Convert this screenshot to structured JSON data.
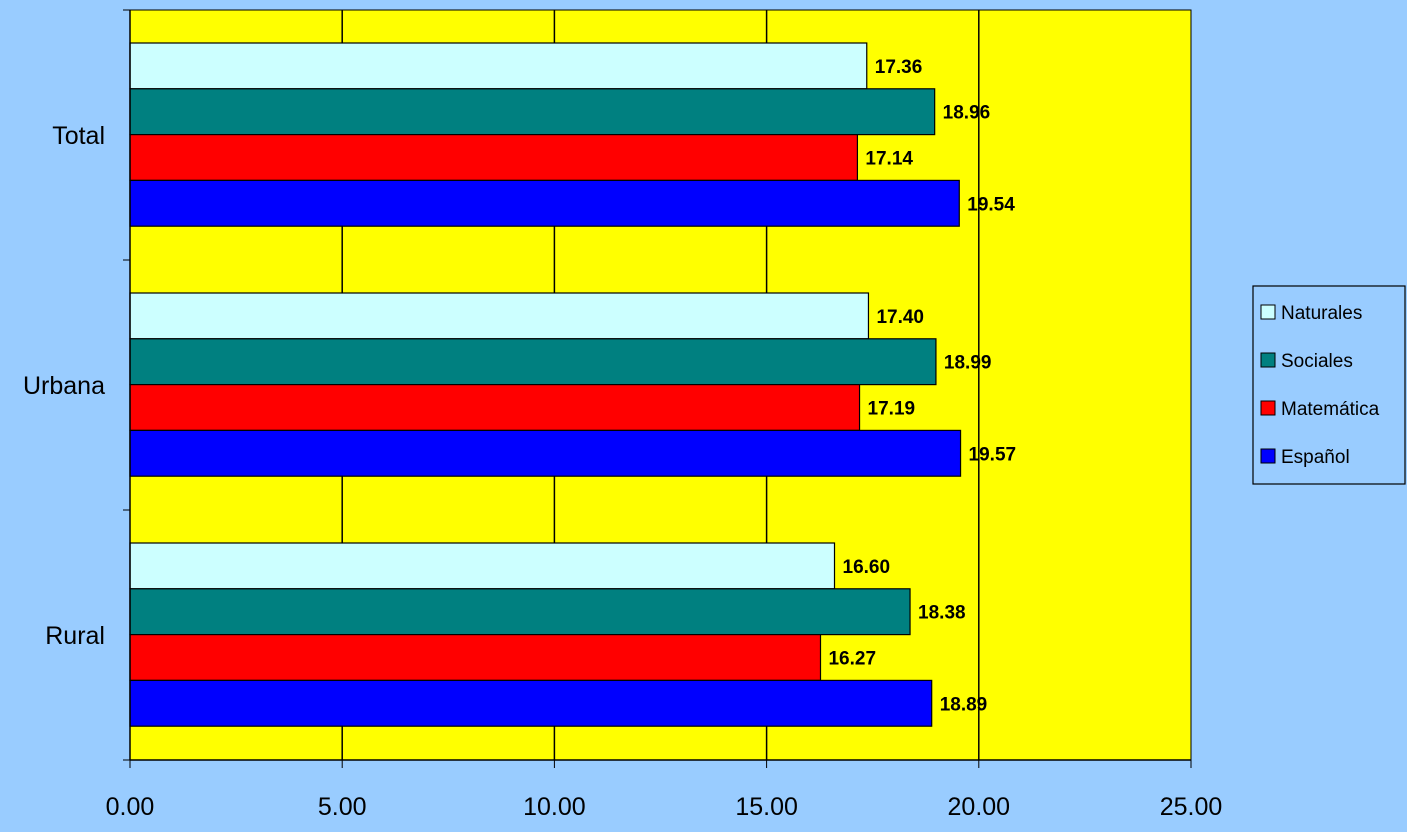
{
  "chart_data": {
    "type": "bar",
    "orientation": "horizontal",
    "categories": [
      "Total",
      "Urbana",
      "Rural"
    ],
    "series": [
      {
        "name": "Naturales",
        "color": "#CCFFFF",
        "values": [
          17.36,
          17.4,
          16.6
        ],
        "labels": [
          "17.36",
          "17.40",
          "16.60"
        ]
      },
      {
        "name": "Sociales",
        "color": "#008080",
        "values": [
          18.96,
          18.99,
          18.38
        ],
        "labels": [
          "18.96",
          "18.99",
          "18.38"
        ]
      },
      {
        "name": "Matemática",
        "color": "#FF0000",
        "values": [
          17.14,
          17.19,
          16.27
        ],
        "labels": [
          "17.14",
          "17.19",
          "16.27"
        ]
      },
      {
        "name": "Español",
        "color": "#0000FF",
        "values": [
          19.54,
          19.57,
          18.89
        ],
        "labels": [
          "19.54",
          "19.57",
          "18.89"
        ]
      }
    ],
    "xlim": [
      0,
      25
    ],
    "xticks": [
      "0.00",
      "5.00",
      "10.00",
      "15.00",
      "20.00",
      "25.00"
    ],
    "grid": true,
    "legend_position": "right",
    "plot_background": "#FFFF00",
    "page_background": "#99CCFF"
  }
}
